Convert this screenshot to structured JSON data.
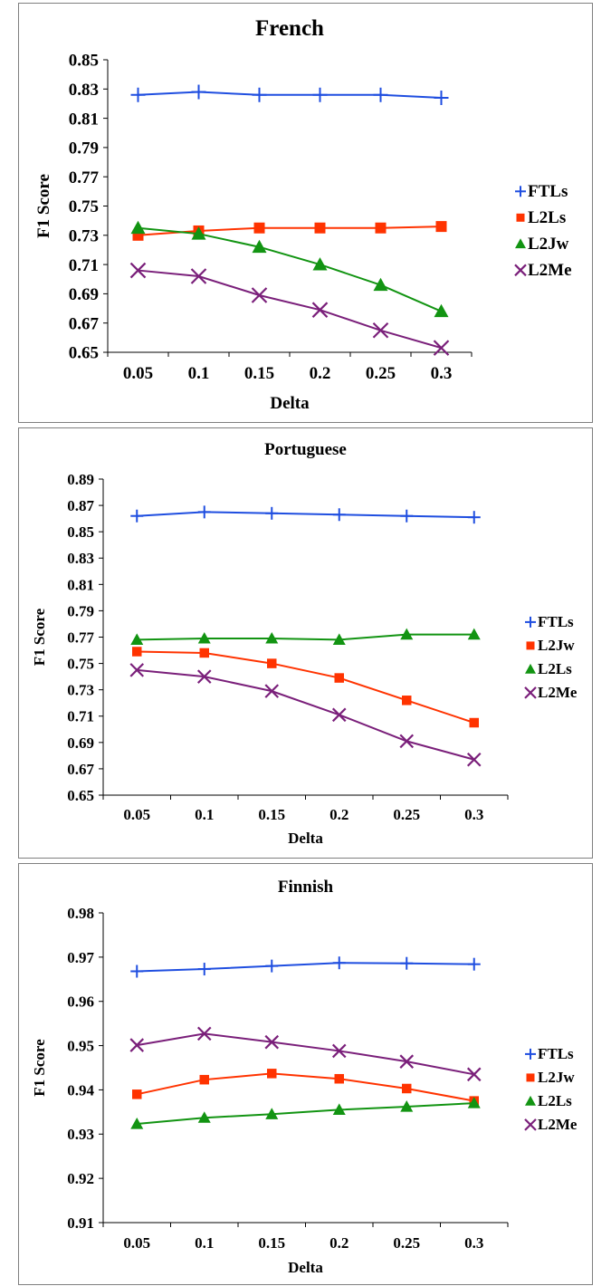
{
  "colors": {
    "FTLs": "#1f4ee0",
    "L2Ls_red": "#ff3300",
    "L2Jw_green": "#129412",
    "L2Me": "#7a1f7a"
  },
  "chart_data": [
    {
      "type": "line",
      "title": "French",
      "xlabel": "Delta",
      "ylabel": "F1 Score",
      "categories": [
        "0.05",
        "0.1",
        "0.15",
        "0.2",
        "0.25",
        "0.3"
      ],
      "yticks": [
        "0.65",
        "0.67",
        "0.69",
        "0.71",
        "0.73",
        "0.75",
        "0.77",
        "0.79",
        "0.81",
        "0.83",
        "0.85"
      ],
      "ylim": [
        0.65,
        0.85
      ],
      "grid": false,
      "legend_position": "right",
      "series": [
        {
          "name": "FTLs",
          "marker": "plus",
          "color": "#1f4ee0",
          "values": [
            0.826,
            0.828,
            0.826,
            0.826,
            0.826,
            0.824
          ]
        },
        {
          "name": "L2Ls",
          "marker": "square",
          "color": "#ff3300",
          "values": [
            0.73,
            0.733,
            0.735,
            0.735,
            0.735,
            0.736
          ]
        },
        {
          "name": "L2Jw",
          "marker": "triangle",
          "color": "#129412",
          "values": [
            0.735,
            0.731,
            0.722,
            0.71,
            0.696,
            0.678
          ]
        },
        {
          "name": "L2Me",
          "marker": "x",
          "color": "#7a1f7a",
          "values": [
            0.706,
            0.702,
            0.689,
            0.679,
            0.665,
            0.653
          ]
        }
      ]
    },
    {
      "type": "line",
      "title": "Portuguese",
      "xlabel": "Delta",
      "ylabel": "F1 Score",
      "categories": [
        "0.05",
        "0.1",
        "0.15",
        "0.2",
        "0.25",
        "0.3"
      ],
      "yticks": [
        "0.65",
        "0.67",
        "0.69",
        "0.71",
        "0.73",
        "0.75",
        "0.77",
        "0.79",
        "0.81",
        "0.83",
        "0.85",
        "0.87",
        "0.89"
      ],
      "ylim": [
        0.65,
        0.89
      ],
      "grid": false,
      "legend_position": "right",
      "series": [
        {
          "name": "FTLs",
          "marker": "plus",
          "color": "#1f4ee0",
          "values": [
            0.862,
            0.865,
            0.864,
            0.863,
            0.862,
            0.861
          ]
        },
        {
          "name": "L2Jw",
          "marker": "square",
          "color": "#ff3300",
          "values": [
            0.759,
            0.758,
            0.75,
            0.739,
            0.722,
            0.705
          ]
        },
        {
          "name": "L2Ls",
          "marker": "triangle",
          "color": "#129412",
          "values": [
            0.768,
            0.769,
            0.769,
            0.768,
            0.772,
            0.772
          ]
        },
        {
          "name": "L2Me",
          "marker": "x",
          "color": "#7a1f7a",
          "values": [
            0.745,
            0.74,
            0.729,
            0.711,
            0.691,
            0.677
          ]
        }
      ]
    },
    {
      "type": "line",
      "title": "Finnish",
      "xlabel": "Delta",
      "ylabel": "F1 Score",
      "categories": [
        "0.05",
        "0.1",
        "0.15",
        "0.2",
        "0.25",
        "0.3"
      ],
      "yticks": [
        "0.91",
        "0.92",
        "0.93",
        "0.94",
        "0.95",
        "0.96",
        "0.97",
        "0.98"
      ],
      "ylim": [
        0.91,
        0.98
      ],
      "grid": false,
      "legend_position": "right",
      "series": [
        {
          "name": "FTLs",
          "marker": "plus",
          "color": "#1f4ee0",
          "values": [
            0.9668,
            0.9673,
            0.968,
            0.9687,
            0.9686,
            0.9684
          ]
        },
        {
          "name": "L2Jw",
          "marker": "square",
          "color": "#ff3300",
          "values": [
            0.939,
            0.9423,
            0.9437,
            0.9425,
            0.9403,
            0.9375
          ]
        },
        {
          "name": "L2Ls",
          "marker": "triangle",
          "color": "#129412",
          "values": [
            0.9323,
            0.9337,
            0.9345,
            0.9355,
            0.9362,
            0.937
          ]
        },
        {
          "name": "L2Me",
          "marker": "x",
          "color": "#7a1f7a",
          "values": [
            0.9501,
            0.9527,
            0.9508,
            0.9488,
            0.9464,
            0.9435
          ]
        }
      ]
    }
  ]
}
